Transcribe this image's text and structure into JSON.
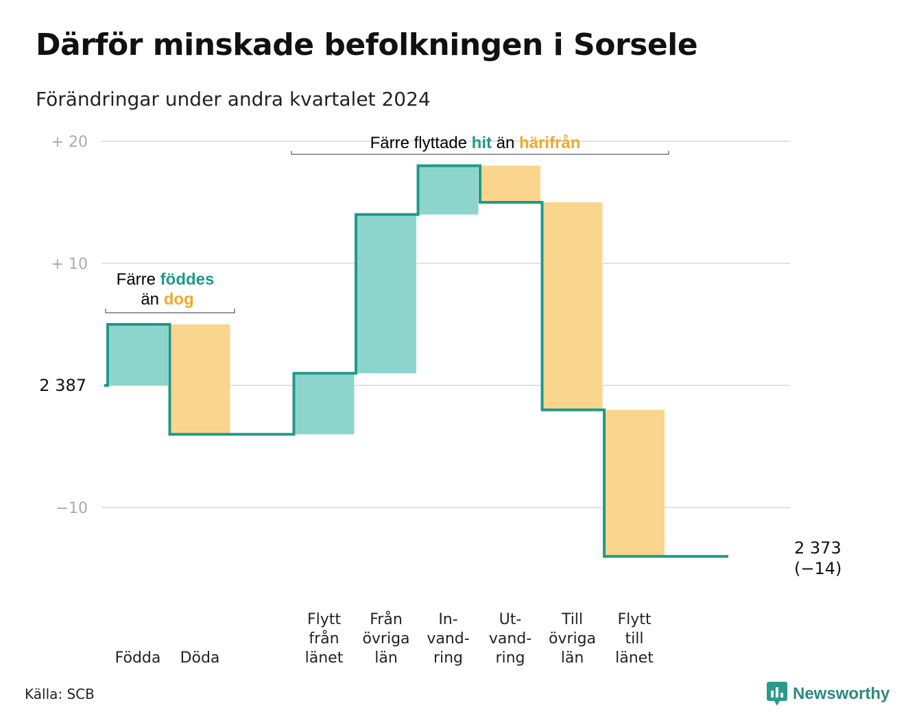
{
  "title": "Därför minskade befolkningen i Sorsele",
  "subtitle": "Förändringar under andra kvartalet 2024",
  "source": "Källa: SCB",
  "brand": "Newsworthy",
  "colors": {
    "increase": "#8dd5cc",
    "decrease": "#fad58e",
    "line": "#1f9a89",
    "grid": "#e2e2e2",
    "teal_text": "#1f9a89",
    "orange_text": "#f0a92d"
  },
  "annotations": {
    "births": {
      "pre": "Färre",
      "a": "föddes",
      "mid": "än",
      "b": "dog"
    },
    "moves": {
      "pre": "Färre flyttade",
      "a": "hit",
      "mid": "än",
      "b": "härifrån"
    }
  },
  "chart_data": {
    "type": "waterfall",
    "start_label": "2 387",
    "end_label": "2 373",
    "end_change_label": "(−14)",
    "yticks": [
      {
        "value": 20,
        "label": "+  20"
      },
      {
        "value": 10,
        "label": "+  10"
      },
      {
        "value": 0,
        "label": ""
      },
      {
        "value": -10,
        "label": "−10"
      }
    ],
    "ylim": [
      -14,
      20
    ],
    "steps": [
      {
        "category": [
          "",
          "",
          "Födda"
        ],
        "change": 5
      },
      {
        "category": [
          "",
          "",
          "Döda"
        ],
        "change": -9
      },
      {
        "category": [
          "",
          "",
          ""
        ],
        "change": 0
      },
      {
        "category": [
          "Flytt",
          "från",
          "länet"
        ],
        "change": 5
      },
      {
        "category": [
          "Från",
          "övriga",
          "län"
        ],
        "change": 13
      },
      {
        "category": [
          "In-",
          "vand-",
          "ring"
        ],
        "change": 4
      },
      {
        "category": [
          "Ut-",
          "vand-",
          "ring"
        ],
        "change": -3
      },
      {
        "category": [
          "Till",
          "övriga",
          "län"
        ],
        "change": -17
      },
      {
        "category": [
          "Flytt",
          "till",
          "länet"
        ],
        "change": -12
      },
      {
        "category": [
          "",
          "",
          ""
        ],
        "change": 0
      }
    ]
  }
}
